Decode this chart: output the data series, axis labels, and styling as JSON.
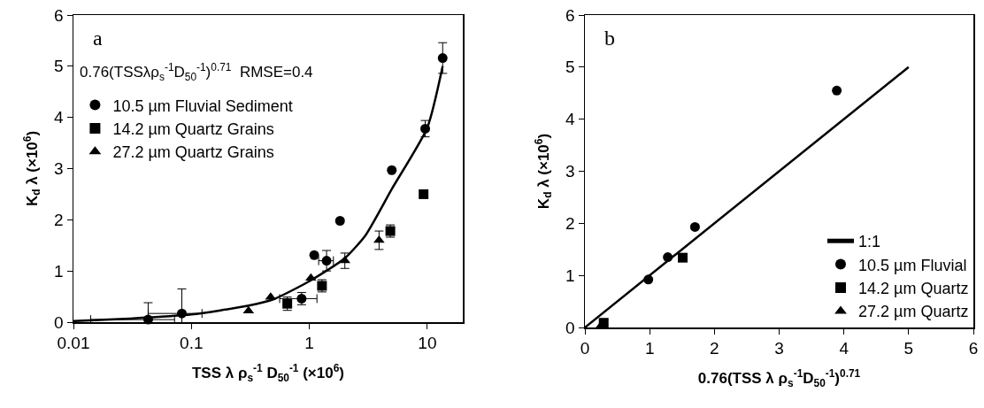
{
  "chart_data": [
    {
      "type": "scatter",
      "xlabel": "TSS λ ρ$_{s}$$^{-1}$ D$_{50}$$^{-1}$ (×10$^{6}$)",
      "ylabel": "K$_{d}$ λ (×10$^{6}$)",
      "log": "x",
      "xlim": [
        0.01,
        20
      ],
      "xticks": [
        0.01,
        0.1,
        1,
        10
      ],
      "ylim": [
        0,
        6
      ],
      "yticks": [
        0,
        1,
        2,
        3,
        4,
        5,
        6
      ],
      "grid": false,
      "legend": "top left",
      "annotations": [
        "a",
        "0.76(TSSλρ$_{s}$$^{-1}$D$_{50}$$^{-1}$)$^{0.71}$  RMSE=0.4"
      ],
      "series": [
        {
          "type": "line",
          "color": "#000000",
          "marker": "none",
          "line_style": "solid",
          "x": [
            0.01,
            0.03,
            0.1,
            0.3,
            0.5,
            1,
            2,
            3,
            5,
            10,
            13.5
          ],
          "values": [
            0.02,
            0.07,
            0.15,
            0.32,
            0.45,
            0.8,
            1.25,
            1.7,
            2.6,
            3.8,
            5.0
          ]
        },
        {
          "name": "10.5 µm Fluvial Sediment",
          "color": "#000000",
          "marker": "circle",
          "x": [
            0.043,
            0.083,
            0.86,
            1.1,
            1.4,
            1.82,
            5.0,
            9.6,
            13.5
          ],
          "values": [
            0.05,
            0.17,
            0.46,
            1.31,
            1.2,
            1.98,
            2.97,
            3.78,
            5.16
          ],
          "errors": [
            0.33,
            0.48,
            0.12,
            null,
            0.2,
            null,
            null,
            0.16,
            0.3
          ],
          "xerrors": [
            0.029,
            0.04,
            0.3,
            null,
            0.2,
            null,
            null,
            null,
            null
          ]
        },
        {
          "name": "14.2 µm Quartz Grains",
          "color": "#000000",
          "marker": "square",
          "x": [
            0.65,
            1.28,
            4.86,
            9.3
          ],
          "values": [
            0.36,
            0.71,
            1.78,
            2.5
          ],
          "errors": [
            0.13,
            0.12,
            0.12,
            null
          ]
        },
        {
          "name": "27.2 µm Quartz Grains",
          "color": "#000000",
          "marker": "triangle",
          "x": [
            0.305,
            0.47,
            1.03,
            2.0,
            3.9
          ],
          "values": [
            0.22,
            0.49,
            0.86,
            1.2,
            1.6
          ],
          "errors": [
            null,
            null,
            null,
            0.15,
            0.18
          ]
        }
      ]
    },
    {
      "type": "scatter",
      "xlabel": "0.76(TSS λ ρ$_{s}$$^{-1}$D$_{50}$$^{-1}$)$^{0.71}$",
      "ylabel": "K$_{d}$ λ (×10$^{6}$)",
      "xlim": [
        0,
        6
      ],
      "xticks": [
        0,
        1,
        2,
        3,
        4,
        5,
        6
      ],
      "ylim": [
        0,
        6
      ],
      "yticks": [
        0,
        1,
        2,
        3,
        4,
        5,
        6
      ],
      "grid": false,
      "legend": "bottom right",
      "annotations": [
        "b"
      ],
      "series": [
        {
          "type": "line",
          "name": "1:1",
          "color": "#000000",
          "marker": "none",
          "line_style": "solid",
          "x": [
            0,
            5
          ],
          "values": [
            0,
            5
          ]
        },
        {
          "name": "10.5 µm Fluvial",
          "color": "#000000",
          "marker": "circle",
          "x": [
            3.89,
            1.7,
            1.28,
            0.98
          ],
          "values": [
            4.55,
            1.93,
            1.35,
            0.92
          ]
        },
        {
          "name": "14.2 µm Quartz",
          "color": "#000000",
          "marker": "square",
          "x": [
            1.51,
            0.29
          ],
          "values": [
            1.34,
            0.09
          ]
        },
        {
          "name": "27.2 µm Quartz",
          "color": "#000000",
          "marker": "triangle",
          "x": [
            0.25
          ],
          "values": [
            0.04
          ]
        }
      ]
    }
  ]
}
